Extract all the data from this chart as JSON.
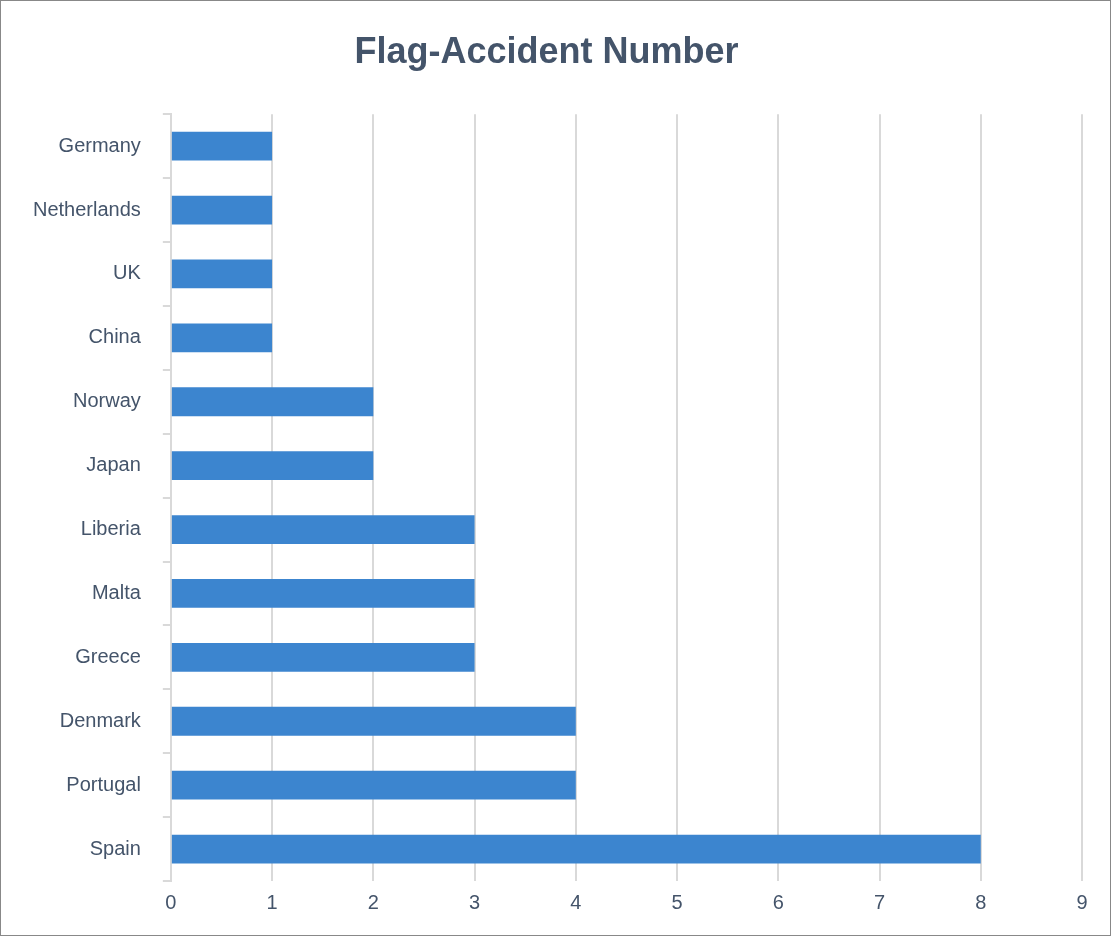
{
  "chart_data": {
    "type": "bar",
    "orientation": "horizontal",
    "title": "Flag-Accident Number",
    "categories": [
      "Germany",
      "Netherlands",
      "UK",
      "China",
      "Norway",
      "Japan",
      "Liberia",
      "Malta",
      "Greece",
      "Denmark",
      "Portugal",
      "Spain"
    ],
    "values": [
      1,
      1,
      1,
      1,
      2,
      2,
      3,
      3,
      3,
      4,
      4,
      8
    ],
    "color": "#3c85cf",
    "xlim": [
      0,
      9
    ],
    "xticks": [
      0,
      1,
      2,
      3,
      4,
      5,
      6,
      7,
      8,
      9
    ],
    "grid": "x",
    "legend": false
  }
}
